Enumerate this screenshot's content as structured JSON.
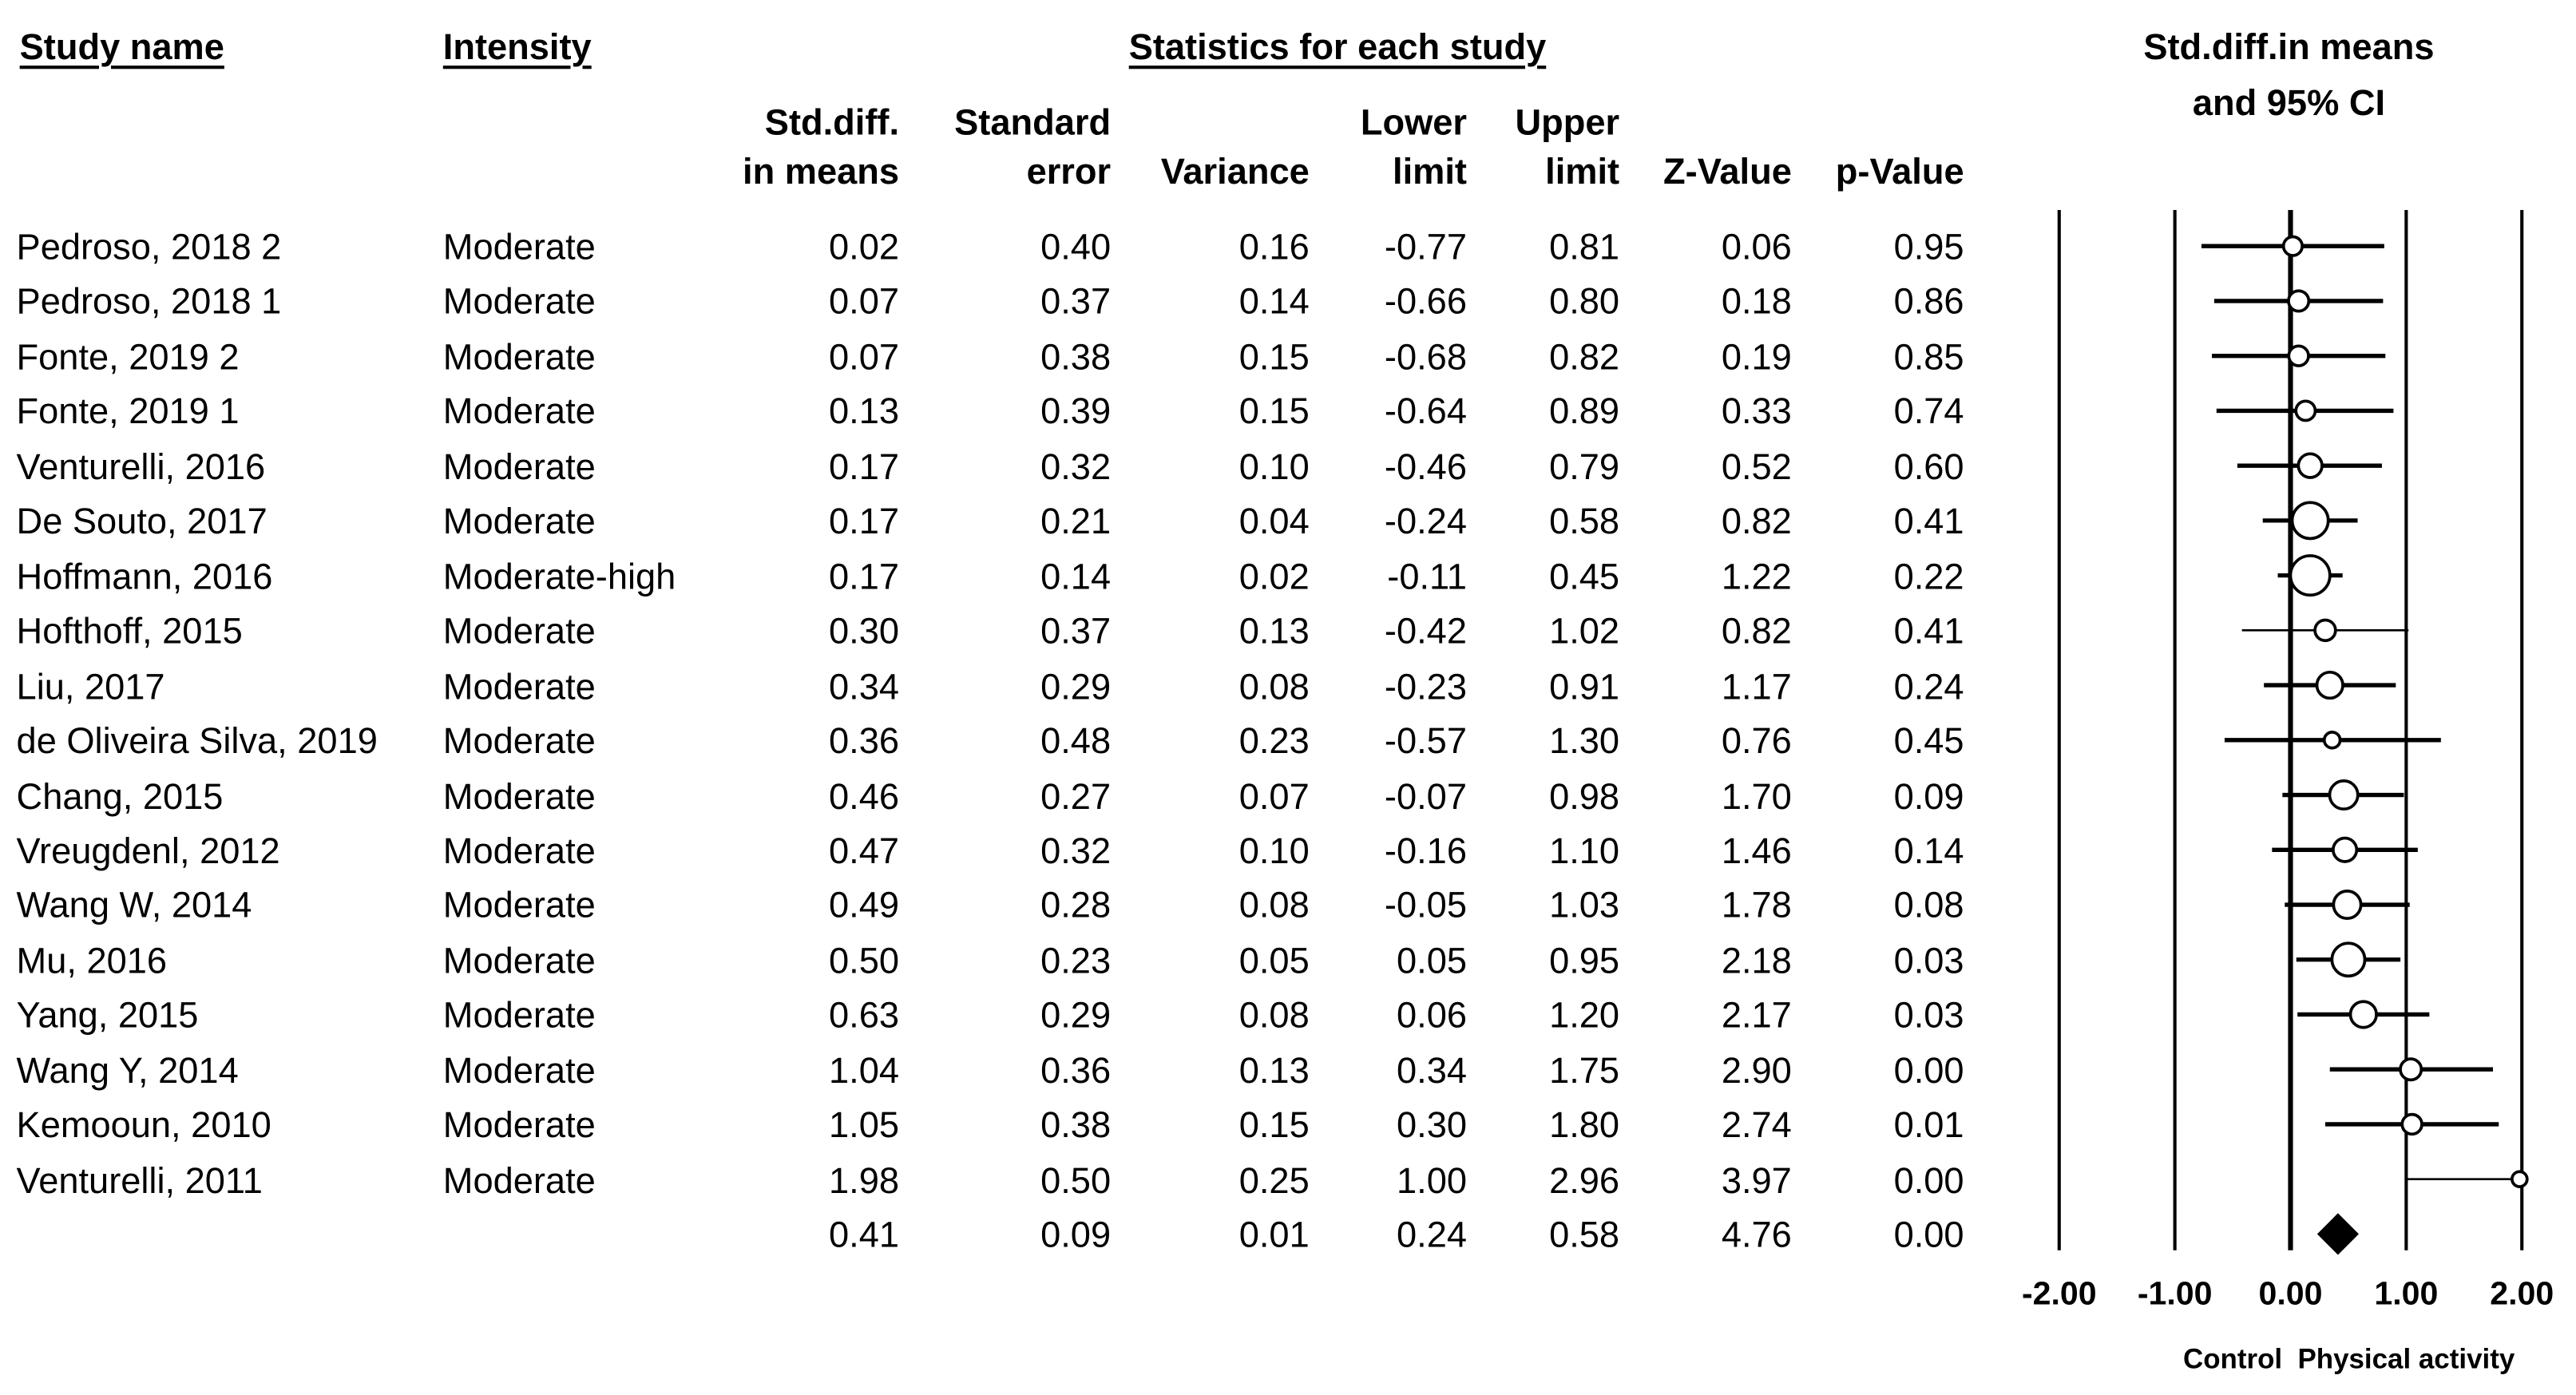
{
  "headers": {
    "study_name": "Study name",
    "intensity": "Intensity",
    "statistics": "Statistics for each study",
    "plot_title_1": "Std.diff.in means",
    "plot_title_2": "and 95% CI"
  },
  "columns": [
    {
      "l1": "Std.diff.",
      "l2": "in means"
    },
    {
      "l1": "Standard",
      "l2": "error"
    },
    {
      "l1": "",
      "l2": "Variance"
    },
    {
      "l1": "Lower",
      "l2": "limit"
    },
    {
      "l1": "Upper",
      "l2": "limit"
    },
    {
      "l1": "",
      "l2": "Z-Value"
    },
    {
      "l1": "",
      "l2": "p-Value"
    }
  ],
  "rows": [
    {
      "study": "Pedroso, 2018 2",
      "intensity": "Moderate",
      "smd": "0.02",
      "se": "0.40",
      "var": "0.16",
      "lower": "-0.77",
      "upper": "0.81",
      "z": "0.06",
      "p": "0.95"
    },
    {
      "study": "Pedroso, 2018 1",
      "intensity": "Moderate",
      "smd": "0.07",
      "se": "0.37",
      "var": "0.14",
      "lower": "-0.66",
      "upper": "0.80",
      "z": "0.18",
      "p": "0.86"
    },
    {
      "study": "Fonte, 2019 2",
      "intensity": "Moderate",
      "smd": "0.07",
      "se": "0.38",
      "var": "0.15",
      "lower": "-0.68",
      "upper": "0.82",
      "z": "0.19",
      "p": "0.85"
    },
    {
      "study": "Fonte, 2019 1",
      "intensity": "Moderate",
      "smd": "0.13",
      "se": "0.39",
      "var": "0.15",
      "lower": "-0.64",
      "upper": "0.89",
      "z": "0.33",
      "p": "0.74"
    },
    {
      "study": "Venturelli, 2016",
      "intensity": "Moderate",
      "smd": "0.17",
      "se": "0.32",
      "var": "0.10",
      "lower": "-0.46",
      "upper": "0.79",
      "z": "0.52",
      "p": "0.60"
    },
    {
      "study": "De Souto, 2017",
      "intensity": "Moderate",
      "smd": "0.17",
      "se": "0.21",
      "var": "0.04",
      "lower": "-0.24",
      "upper": "0.58",
      "z": "0.82",
      "p": "0.41"
    },
    {
      "study": "Hoffmann, 2016",
      "intensity": "Moderate-high",
      "smd": "0.17",
      "se": "0.14",
      "var": "0.02",
      "lower": "-0.11",
      "upper": "0.45",
      "z": "1.22",
      "p": "0.22"
    },
    {
      "study": "Hofthoff, 2015",
      "intensity": "Moderate",
      "smd": "0.30",
      "se": "0.37",
      "var": "0.13",
      "lower": "-0.42",
      "upper": "1.02",
      "z": "0.82",
      "p": "0.41"
    },
    {
      "study": "Liu, 2017",
      "intensity": "Moderate",
      "smd": "0.34",
      "se": "0.29",
      "var": "0.08",
      "lower": "-0.23",
      "upper": "0.91",
      "z": "1.17",
      "p": "0.24"
    },
    {
      "study": "de Oliveira Silva, 2019",
      "intensity": "Moderate",
      "smd": "0.36",
      "se": "0.48",
      "var": "0.23",
      "lower": "-0.57",
      "upper": "1.30",
      "z": "0.76",
      "p": "0.45"
    },
    {
      "study": "Chang, 2015",
      "intensity": "Moderate",
      "smd": "0.46",
      "se": "0.27",
      "var": "0.07",
      "lower": "-0.07",
      "upper": "0.98",
      "z": "1.70",
      "p": "0.09"
    },
    {
      "study": "Vreugdenl, 2012",
      "intensity": "Moderate",
      "smd": "0.47",
      "se": "0.32",
      "var": "0.10",
      "lower": "-0.16",
      "upper": "1.10",
      "z": "1.46",
      "p": "0.14"
    },
    {
      "study": "Wang W, 2014",
      "intensity": "Moderate",
      "smd": "0.49",
      "se": "0.28",
      "var": "0.08",
      "lower": "-0.05",
      "upper": "1.03",
      "z": "1.78",
      "p": "0.08"
    },
    {
      "study": "Mu, 2016",
      "intensity": "Moderate",
      "smd": "0.50",
      "se": "0.23",
      "var": "0.05",
      "lower": "0.05",
      "upper": "0.95",
      "z": "2.18",
      "p": "0.03"
    },
    {
      "study": "Yang, 2015",
      "intensity": "Moderate",
      "smd": "0.63",
      "se": "0.29",
      "var": "0.08",
      "lower": "0.06",
      "upper": "1.20",
      "z": "2.17",
      "p": "0.03"
    },
    {
      "study": "Wang Y, 2014",
      "intensity": "Moderate",
      "smd": "1.04",
      "se": "0.36",
      "var": "0.13",
      "lower": "0.34",
      "upper": "1.75",
      "z": "2.90",
      "p": "0.00"
    },
    {
      "study": "Kemooun, 2010",
      "intensity": "Moderate",
      "smd": "1.05",
      "se": "0.38",
      "var": "0.15",
      "lower": "0.30",
      "upper": "1.80",
      "z": "2.74",
      "p": "0.01"
    },
    {
      "study": "Venturelli, 2011",
      "intensity": "Moderate",
      "smd": "1.98",
      "se": "0.50",
      "var": "0.25",
      "lower": "1.00",
      "upper": "2.96",
      "z": "3.97",
      "p": "0.00"
    }
  ],
  "summary": {
    "study": "",
    "intensity": "",
    "smd": "0.41",
    "se": "0.09",
    "var": "0.01",
    "lower": "0.24",
    "upper": "0.58",
    "z": "4.76",
    "p": "0.00"
  },
  "chart_data": {
    "type": "forest",
    "title": "Std.diff.in means and 95% CI",
    "xlim": [
      -2,
      2
    ],
    "ticks": [
      "-2.00",
      "-1.00",
      "0.00",
      "1.00",
      "2.00"
    ],
    "left_label": "Control",
    "right_label": "Physical activity",
    "points": [
      {
        "name": "Pedroso, 2018 2",
        "est": 0.02,
        "lo": -0.77,
        "hi": 0.81
      },
      {
        "name": "Pedroso, 2018 1",
        "est": 0.07,
        "lo": -0.66,
        "hi": 0.8
      },
      {
        "name": "Fonte, 2019 2",
        "est": 0.07,
        "lo": -0.68,
        "hi": 0.82
      },
      {
        "name": "Fonte, 2019 1",
        "est": 0.13,
        "lo": -0.64,
        "hi": 0.89
      },
      {
        "name": "Venturelli, 2016",
        "est": 0.17,
        "lo": -0.46,
        "hi": 0.79
      },
      {
        "name": "De Souto, 2017",
        "est": 0.17,
        "lo": -0.24,
        "hi": 0.58
      },
      {
        "name": "Hoffmann, 2016",
        "est": 0.17,
        "lo": -0.11,
        "hi": 0.45
      },
      {
        "name": "Hofthoff, 2015",
        "est": 0.3,
        "lo": -0.42,
        "hi": 1.02
      },
      {
        "name": "Liu, 2017",
        "est": 0.34,
        "lo": -0.23,
        "hi": 0.91
      },
      {
        "name": "de Oliveira Silva, 2019",
        "est": 0.36,
        "lo": -0.57,
        "hi": 1.3
      },
      {
        "name": "Chang, 2015",
        "est": 0.46,
        "lo": -0.07,
        "hi": 0.98
      },
      {
        "name": "Vreugdenl, 2012",
        "est": 0.47,
        "lo": -0.16,
        "hi": 1.1
      },
      {
        "name": "Wang W, 2014",
        "est": 0.49,
        "lo": -0.05,
        "hi": 1.03
      },
      {
        "name": "Mu, 2016",
        "est": 0.5,
        "lo": 0.05,
        "hi": 0.95
      },
      {
        "name": "Yang, 2015",
        "est": 0.63,
        "lo": 0.06,
        "hi": 1.2
      },
      {
        "name": "Wang Y, 2014",
        "est": 1.04,
        "lo": 0.34,
        "hi": 1.75
      },
      {
        "name": "Kemooun, 2010",
        "est": 1.05,
        "lo": 0.3,
        "hi": 1.8
      },
      {
        "name": "Venturelli, 2011",
        "est": 1.98,
        "lo": 1.0,
        "hi": 2.96
      }
    ],
    "pooled": {
      "est": 0.41,
      "lo": 0.24,
      "hi": 0.58
    }
  }
}
